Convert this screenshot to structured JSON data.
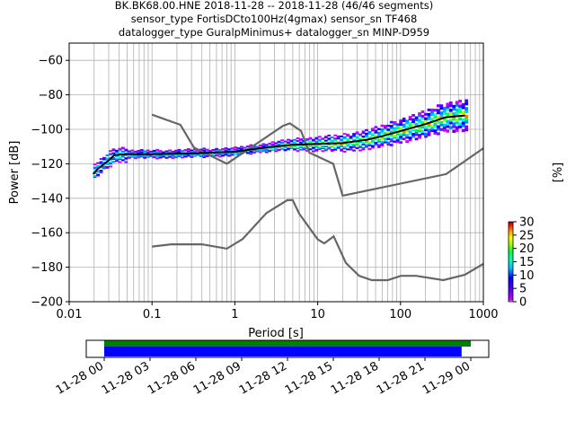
{
  "title_lines": [
    "BK.BK68.00.HNE   2018-11-28 -- 2018-11-28  (46/46 segments)",
    "sensor_type FortisDCto100Hz(4gmax) sensor_sn TF468",
    "datalogger_type GuralpMinimus+ datalogger_sn MINP-D959"
  ],
  "chart_data": {
    "type": "heatmap",
    "xlabel": "Period [s]",
    "ylabel": "Power [dB]",
    "xscale": "log",
    "xlim": [
      0.01,
      1000
    ],
    "ylim": [
      -200,
      -50
    ],
    "grid": true,
    "xticks": [
      "0.01",
      "0.1",
      "1",
      "10",
      "100",
      "1000"
    ],
    "yticks": [
      "−60",
      "−80",
      "−100",
      "−120",
      "−140",
      "−160",
      "−180",
      "−200"
    ],
    "median_line": {
      "x": [
        0.0195,
        0.022,
        0.025,
        0.03,
        0.035,
        0.05,
        0.1,
        0.3,
        1,
        2,
        3,
        5,
        10,
        20,
        40,
        60,
        100,
        200,
        350,
        600
      ],
      "y": [
        -126,
        -123,
        -121,
        -118,
        -115,
        -114.5,
        -114.5,
        -114,
        -113,
        -111,
        -110,
        -109,
        -108.5,
        -108,
        -106,
        -104,
        -101,
        -97,
        -93,
        -92
      ]
    },
    "nhnm": {
      "x": [
        0.1,
        0.22,
        0.32,
        0.8,
        3.8,
        4.6,
        6.3,
        7.9,
        15.4,
        20,
        354.8,
        1000
      ],
      "y": [
        -91.5,
        -97.4,
        -110.5,
        -120,
        -98,
        -96.5,
        -101,
        -113.5,
        -120,
        -138.5,
        -126,
        -111
      ]
    },
    "nlnm": {
      "x": [
        0.1,
        0.17,
        0.4,
        0.8,
        1.24,
        2.4,
        4.3,
        5,
        6,
        10,
        12,
        15.6,
        21.9,
        31.6,
        45,
        70,
        101,
        154,
        328,
        600,
        1000
      ],
      "y": [
        -168,
        -166.7,
        -166.7,
        -169.2,
        -163.7,
        -148.6,
        -141.1,
        -141.1,
        -149,
        -163.8,
        -166.2,
        -162.1,
        -177.5,
        -185,
        -187.5,
        -187.5,
        -185,
        -185,
        -187.5,
        -184.4,
        -178
      ]
    },
    "colorbar": {
      "label": "[%]",
      "ticks": [
        "0",
        "5",
        "10",
        "15",
        "20",
        "25",
        "30"
      ],
      "range": [
        0,
        30
      ]
    },
    "coverage": {
      "tick_labels": [
        "11-28 00",
        "11-28 03",
        "11-28 06",
        "11-28 09",
        "11-28 12",
        "11-28 15",
        "11-28 18",
        "11-28 21",
        "11-29 00"
      ],
      "data_available": {
        "start_hours": 0,
        "end_hours": 23.4,
        "color": "#008000"
      },
      "psd_computed": {
        "start_hours": 0,
        "end_hours": 23.4,
        "color": "#0000ff"
      }
    },
    "colors": {
      "reference_curves": "#666666",
      "median": "#000000",
      "grid": "#b0b0b0"
    }
  }
}
